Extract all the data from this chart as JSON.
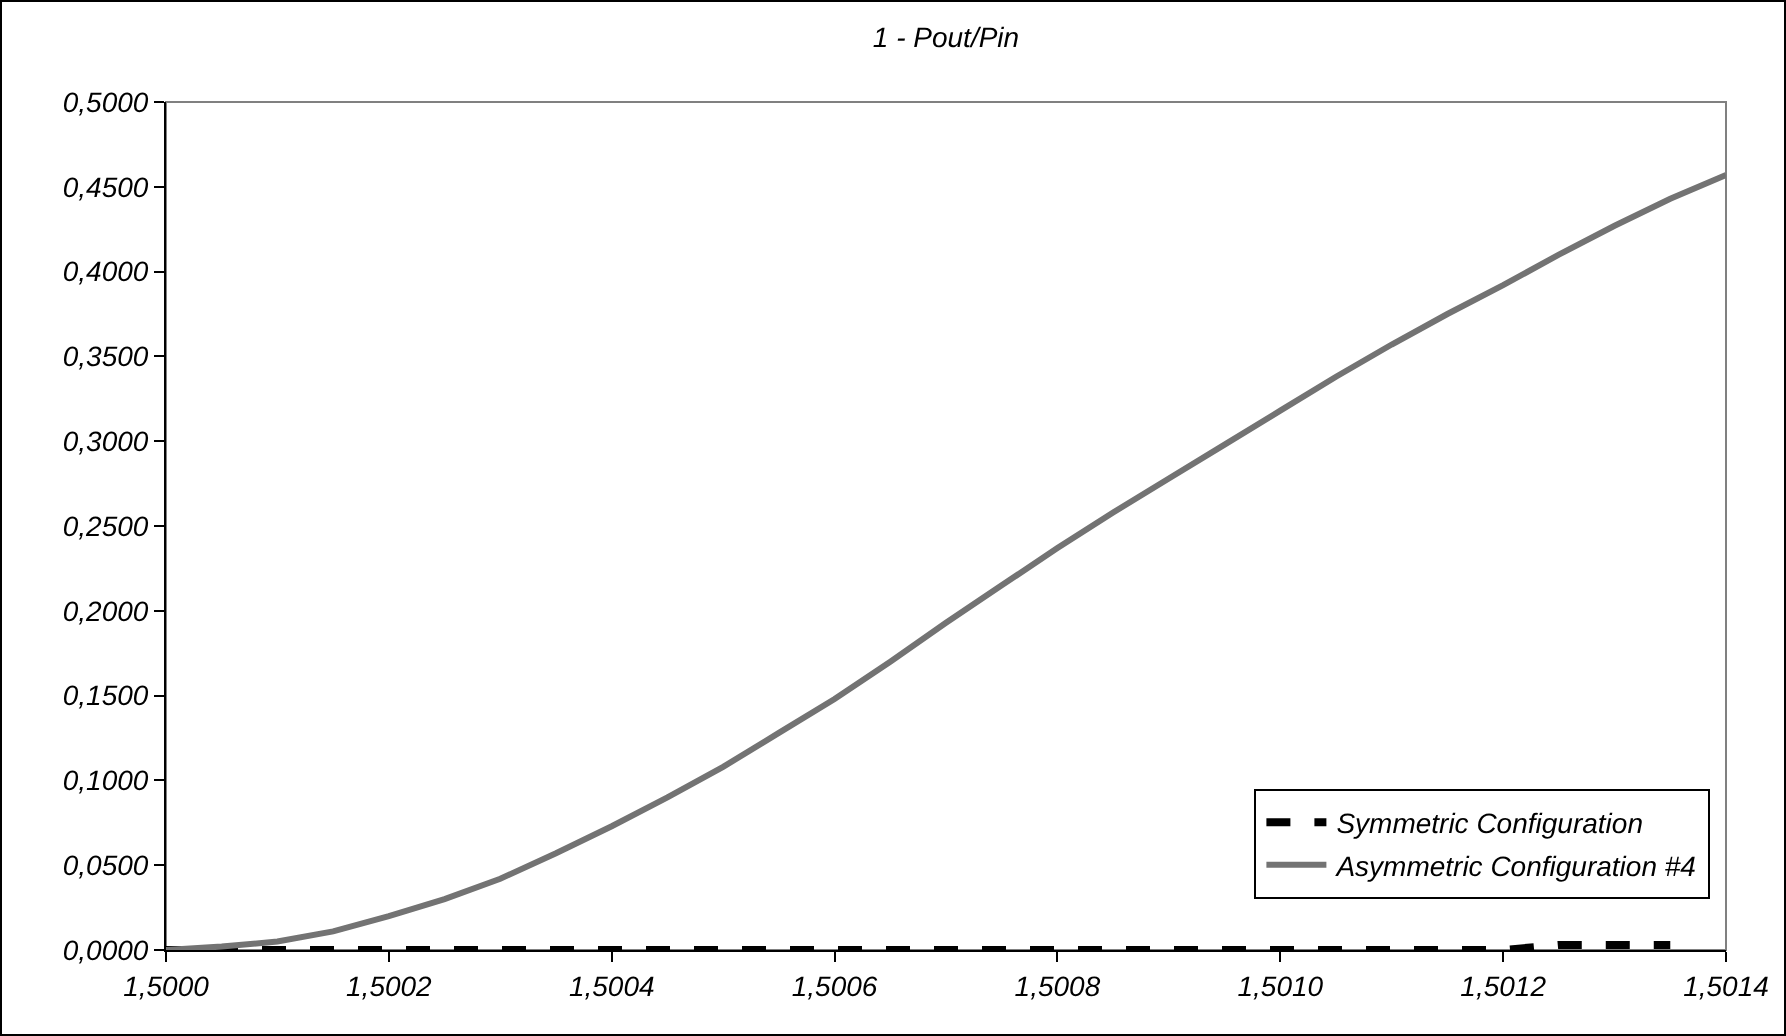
{
  "chart_data": {
    "type": "line",
    "title": "1 - Pout/Pin",
    "categories": [
      "1,5000",
      null,
      null,
      null,
      "1,5002",
      null,
      null,
      null,
      "1,5004",
      null,
      null,
      null,
      "1,5006",
      null,
      null,
      null,
      "1,5008",
      null,
      null,
      null,
      "1,5010",
      null,
      null,
      null,
      "1,5012",
      null,
      null,
      null,
      "1,5014"
    ],
    "ylim": [
      0,
      0.5
    ],
    "yticks": [
      {
        "value": 0,
        "label": "0,0000"
      },
      {
        "value": 0.05,
        "label": "0,0500"
      },
      {
        "value": 0.1,
        "label": "0,1000"
      },
      {
        "value": 0.15,
        "label": "0,1500"
      },
      {
        "value": 0.2,
        "label": "0,2000"
      },
      {
        "value": 0.25,
        "label": "0,2500"
      },
      {
        "value": 0.3,
        "label": "0,3000"
      },
      {
        "value": 0.35,
        "label": "0,3500"
      },
      {
        "value": 0.4,
        "label": "0,4000"
      },
      {
        "value": 0.45,
        "label": "0,4500"
      },
      {
        "value": 0.5,
        "label": "0,5000"
      }
    ],
    "grid": false,
    "legend": "bottom right",
    "marker": "none",
    "series": [
      {
        "name": "Symmetric Configuration",
        "color": "#000000",
        "line_style": "dashed",
        "values": [
          0,
          0,
          0,
          0,
          0,
          0,
          0,
          0,
          0,
          0,
          0,
          0,
          0,
          0,
          0,
          0,
          0,
          0,
          0,
          0,
          0,
          0,
          0,
          0,
          0,
          0.003,
          0.003,
          0.003,
          null
        ]
      },
      {
        "name": "Asymmetric Configuration #4",
        "color": "#737373",
        "line_style": "solid",
        "values": [
          0,
          0.002,
          0.005,
          0.011,
          0.02,
          0.03,
          0.042,
          0.057,
          0.073,
          0.09,
          0.108,
          0.128,
          0.148,
          0.17,
          0.193,
          0.215,
          0.237,
          0.258,
          0.278,
          0.298,
          0.318,
          0.338,
          0.357,
          0.375,
          0.392,
          0.41,
          0.427,
          0.443,
          0.457
        ]
      }
    ]
  }
}
